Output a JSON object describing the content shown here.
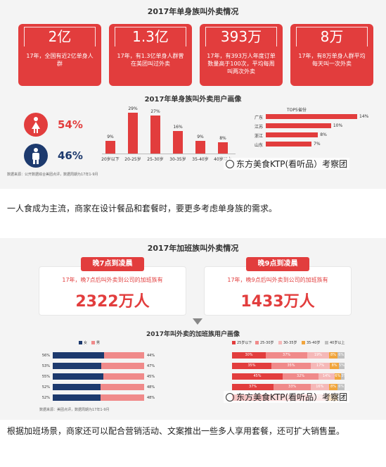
{
  "colors": {
    "accent": "#e23d3d",
    "navy": "#1d3a6e",
    "red": "#e23d3d",
    "light_red": "#f08a8a",
    "pink": "#f5b8b8",
    "orange": "#f1a53c",
    "gray": "#bfbfbf"
  },
  "section1": {
    "title": "2017年单身族叫外卖情况",
    "stats": [
      {
        "value": "2亿",
        "text": "17年，全国有近2亿单身人群"
      },
      {
        "value": "1.3亿",
        "text": "17年，有1.3亿单身人群曾在美团叫过外卖"
      },
      {
        "value": "393万",
        "text": "17年，有393万人年度订单数量高于100次，平均每周叫两次外卖"
      },
      {
        "value": "8万",
        "text": "17年，有8万单身人群平均每天叫一次外卖"
      }
    ],
    "profile_title": "2017年单身族叫外卖用户画像",
    "gender": [
      {
        "icon": "female-icon",
        "pct": "54%",
        "color": "#e23d3d"
      },
      {
        "icon": "male-icon",
        "pct": "46%",
        "color": "#1d3a6e"
      }
    ],
    "top5_title": "TOP5省份",
    "source": "数据来源：公开数据综合美团点评，数据周期为17年1-9月",
    "watermark": "东方美食KTP(看听品）考察团"
  },
  "paragraph1": "一人食成为主流，商家在设计餐品和套餐时，要更多考虑单身族的需求。",
  "section2": {
    "title": "2017年加班族叫外卖情况",
    "blocks": [
      {
        "pill": "晚7点到凌晨",
        "desc": "17年，晚7点后叫外卖到公司的加班族有",
        "number": "2322万人"
      },
      {
        "pill": "晚9点到凌晨",
        "desc": "17年，晚9点后叫外卖到公司的加班族有",
        "number": "1433万人"
      }
    ],
    "profile_title": "2017年叫外卖的加班族用户画像",
    "gender_legend": [
      "女",
      "男"
    ],
    "age_legend": [
      "25岁以下",
      "25-30岁",
      "30-35岁",
      "35-40岁",
      "40岁以上"
    ],
    "source": "数据来源：美团点评，数据周期为17年1-9月",
    "watermark": "东方美食KTP(看听品）考察团"
  },
  "paragraph2": "根据加班场景，商家还可以配合营销活动、文案推出一些多人享用套餐，还可扩大销售量。",
  "chart_data": [
    {
      "type": "bar",
      "title": "2017年单身族叫外卖用户画像",
      "categories": [
        "20岁以下",
        "20-25岁",
        "25-30岁",
        "30-35岁",
        "35-40岁",
        "40岁以上"
      ],
      "values": [
        9,
        29,
        27,
        16,
        9,
        8
      ],
      "unit": "%"
    },
    {
      "type": "bar",
      "orientation": "horizontal",
      "title": "TOP5省份",
      "categories": [
        "广东",
        "江苏",
        "浙江",
        "山东",
        ""
      ],
      "values": [
        14,
        10,
        8,
        7,
        null
      ],
      "unit": "%"
    },
    {
      "type": "bar",
      "orientation": "horizontal-stacked",
      "series": [
        {
          "name": "女",
          "values": [
            56,
            53,
            55,
            52,
            52
          ]
        },
        {
          "name": "男",
          "values": [
            44,
            47,
            45,
            48,
            48
          ]
        }
      ],
      "unit": "%"
    },
    {
      "type": "bar",
      "orientation": "horizontal-stacked",
      "series": [
        {
          "name": "25岁以下",
          "values": [
            30,
            35,
            45,
            37,
            33
          ]
        },
        {
          "name": "25-30岁",
          "values": [
            37,
            35,
            32,
            33,
            35
          ]
        },
        {
          "name": "30-35岁",
          "values": [
            19,
            17,
            14,
            16,
            17
          ]
        },
        {
          "name": "35-40岁",
          "values": [
            8,
            8,
            6,
            8,
            9
          ]
        },
        {
          "name": "40岁以上",
          "values": [
            6,
            5,
            3,
            6,
            6
          ]
        }
      ],
      "unit": "%"
    }
  ]
}
